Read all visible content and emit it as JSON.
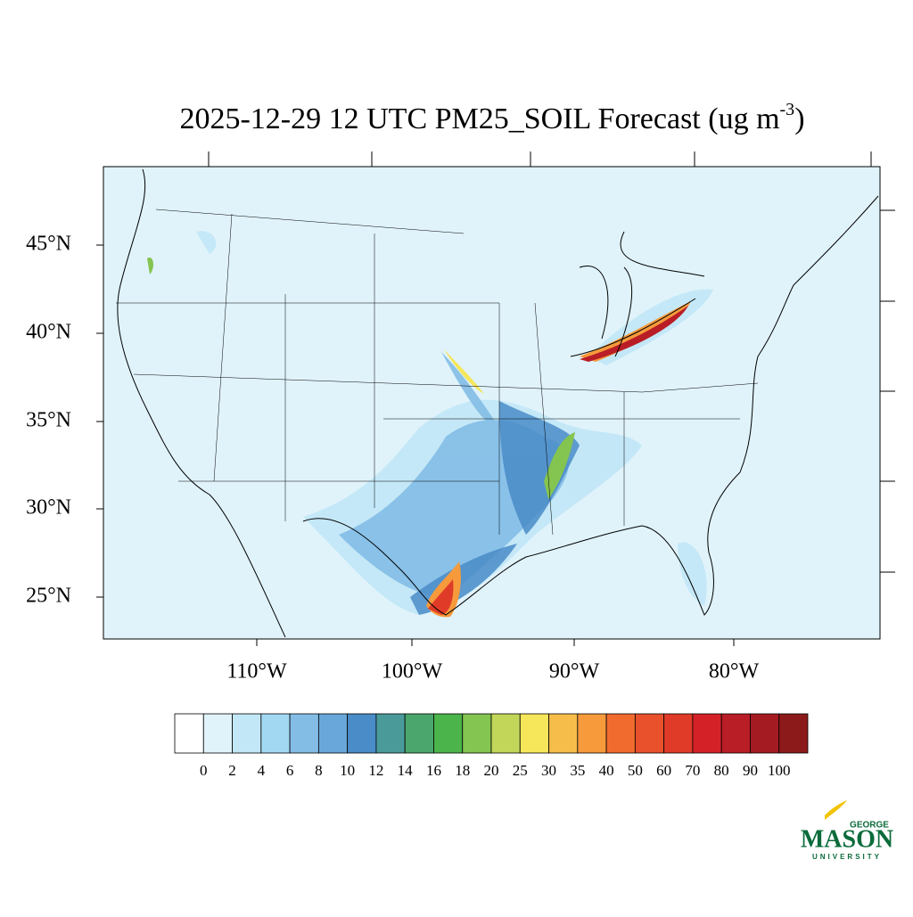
{
  "title": {
    "text": "2025-12-29 12 UTC PM25_SOIL Forecast (ug m",
    "superscript": "-3",
    "end": ")"
  },
  "lat_labels": [
    "45°N",
    "40°N",
    "35°N",
    "30°N",
    "25°N"
  ],
  "lon_labels": [
    "110°W",
    "100°W",
    "90°W",
    "80°W"
  ],
  "colorbar": {
    "colors": [
      "#ffffff",
      "#e0f3fb",
      "#c2e7f7",
      "#a2d8f2",
      "#83bde6",
      "#69a7da",
      "#4a8cc8",
      "#4a9a9a",
      "#4aa66c",
      "#4bb44a",
      "#84c450",
      "#c2d65a",
      "#f6e65a",
      "#f7bd4a",
      "#f69a3c",
      "#f26b2e",
      "#e9502c",
      "#e03b28",
      "#d42128",
      "#b91d25",
      "#a51b22",
      "#8c1a1a"
    ],
    "levels": [
      0,
      2,
      4,
      6,
      8,
      10,
      12,
      14,
      16,
      18,
      20,
      25,
      30,
      35,
      40,
      50,
      60,
      70,
      80,
      90,
      100
    ]
  },
  "logo": {
    "top": "GEORGE",
    "main": "MASON",
    "bottom": "UNIVERSITY"
  }
}
